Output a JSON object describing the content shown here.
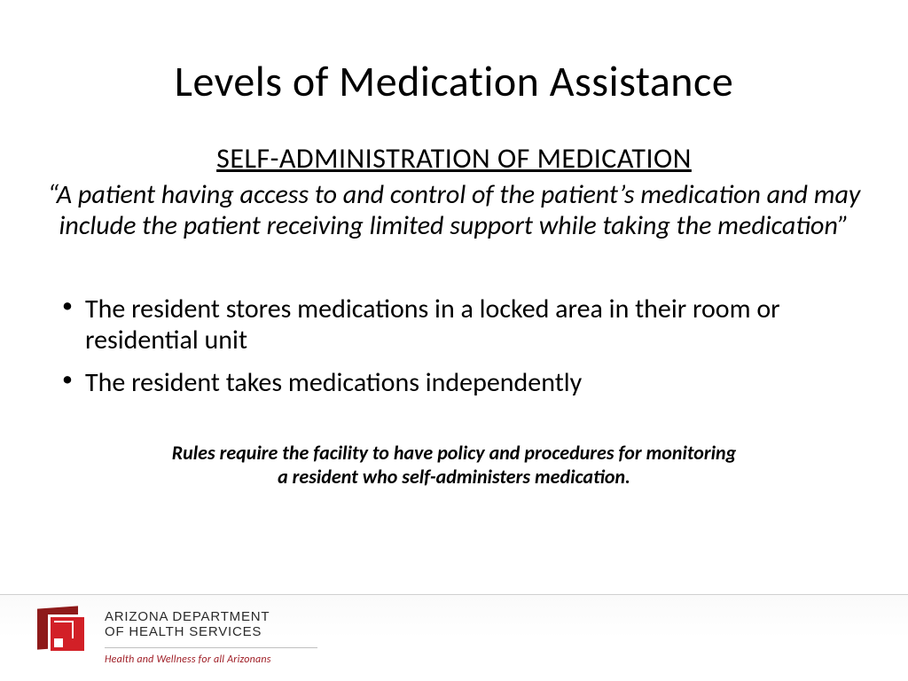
{
  "slide": {
    "title": "Levels of Medication Assistance",
    "subtitle": "SELF-ADMINISTRATION OF MEDICATION",
    "quote": "“A patient having access to and control of the patient’s medication and may include the patient receiving limited support while taking the medication”",
    "bullets": [
      "The resident stores medications in a locked area in their room or residential unit",
      "The resident takes medications independently"
    ],
    "rules_note_line1": "Rules require the facility to have policy and procedures for monitoring",
    "rules_note_line2": "a resident who self-administers medication."
  },
  "footer": {
    "dept_line1": "ARIZONA DEPARTMENT",
    "dept_line2": "OF HEALTH SERVICES",
    "tagline": "Health and Wellness for all Arizonans",
    "logo_colors": {
      "back": "#8e1a1a",
      "front": "#d22027",
      "accent": "#ffffff"
    }
  },
  "styling": {
    "background_color": "#ffffff",
    "text_color": "#000000",
    "title_fontsize": 48,
    "subtitle_fontsize": 32,
    "body_fontsize": 30,
    "note_fontsize": 22,
    "tagline_color": "#a02028",
    "divider_color": "#c0c0c0",
    "footer_border": "#d0d0d0"
  }
}
